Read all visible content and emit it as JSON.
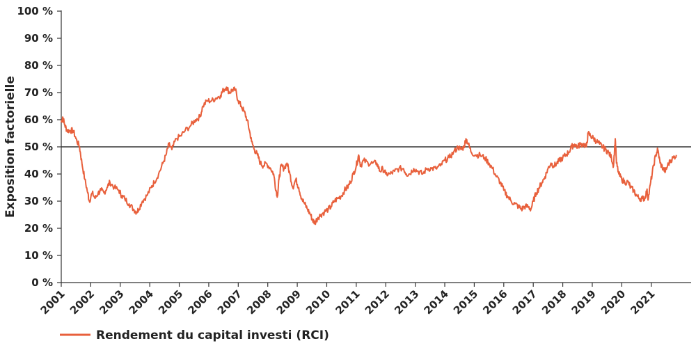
{
  "chart_data": {
    "type": "line",
    "ylabel": "Exposition factorielle",
    "xlabel": "",
    "title": "",
    "ylim": [
      0,
      100
    ],
    "xlim": [
      2001,
      2021.95
    ],
    "y_ticks": [
      "0 %",
      "10 %",
      "20 %",
      "30 %",
      "40 %",
      "50 %",
      "60 %",
      "70 %",
      "80 %",
      "90 %",
      "100 %"
    ],
    "x_ticks": [
      "2001",
      "2002",
      "2003",
      "2004",
      "2005",
      "2006",
      "2007",
      "2008",
      "2009",
      "2010",
      "2011",
      "2012",
      "2013",
      "2014",
      "2015",
      "2016",
      "2017",
      "2018",
      "2019",
      "2020",
      "2021"
    ],
    "reference_line": 50,
    "grid": false,
    "legend_position": "bottom-left",
    "series": [
      {
        "name": "Rendement du capital investi (RCI)",
        "color": "#e8603c",
        "points": [
          [
            2001.0,
            59
          ],
          [
            2001.05,
            61
          ],
          [
            2001.12,
            58
          ],
          [
            2001.2,
            56
          ],
          [
            2001.3,
            56
          ],
          [
            2001.4,
            56
          ],
          [
            2001.5,
            53
          ],
          [
            2001.62,
            50
          ],
          [
            2001.7,
            44
          ],
          [
            2001.8,
            38
          ],
          [
            2001.9,
            33
          ],
          [
            2001.95,
            30
          ],
          [
            2002.05,
            33
          ],
          [
            2002.15,
            31
          ],
          [
            2002.25,
            33
          ],
          [
            2002.35,
            34
          ],
          [
            2002.45,
            33
          ],
          [
            2002.55,
            35
          ],
          [
            2002.65,
            37
          ],
          [
            2002.8,
            35
          ],
          [
            2002.95,
            34
          ],
          [
            2003.05,
            32
          ],
          [
            2003.15,
            31
          ],
          [
            2003.3,
            29
          ],
          [
            2003.45,
            27
          ],
          [
            2003.55,
            26
          ],
          [
            2003.62,
            27
          ],
          [
            2003.75,
            30
          ],
          [
            2003.9,
            32
          ],
          [
            2004.05,
            35
          ],
          [
            2004.15,
            37
          ],
          [
            2004.3,
            40
          ],
          [
            2004.45,
            44
          ],
          [
            2004.55,
            47
          ],
          [
            2004.65,
            51
          ],
          [
            2004.75,
            49
          ],
          [
            2004.9,
            53
          ],
          [
            2005.05,
            54
          ],
          [
            2005.2,
            56
          ],
          [
            2005.4,
            58
          ],
          [
            2005.55,
            60
          ],
          [
            2005.7,
            61
          ],
          [
            2005.8,
            65
          ],
          [
            2005.95,
            67
          ],
          [
            2006.1,
            67
          ],
          [
            2006.25,
            68
          ],
          [
            2006.4,
            69
          ],
          [
            2006.5,
            71
          ],
          [
            2006.6,
            72
          ],
          [
            2006.7,
            70
          ],
          [
            2006.8,
            71
          ],
          [
            2006.9,
            71
          ],
          [
            2007.0,
            67
          ],
          [
            2007.1,
            65
          ],
          [
            2007.2,
            63
          ],
          [
            2007.3,
            60
          ],
          [
            2007.38,
            56
          ],
          [
            2007.45,
            52
          ],
          [
            2007.55,
            49
          ],
          [
            2007.65,
            47
          ],
          [
            2007.75,
            44
          ],
          [
            2007.85,
            43
          ],
          [
            2007.95,
            44
          ],
          [
            2008.1,
            42
          ],
          [
            2008.2,
            40
          ],
          [
            2008.28,
            34
          ],
          [
            2008.33,
            32
          ],
          [
            2008.38,
            38
          ],
          [
            2008.45,
            43
          ],
          [
            2008.55,
            42
          ],
          [
            2008.65,
            44
          ],
          [
            2008.75,
            40
          ],
          [
            2008.85,
            35
          ],
          [
            2008.95,
            38
          ],
          [
            2009.05,
            35
          ],
          [
            2009.15,
            31
          ],
          [
            2009.25,
            29
          ],
          [
            2009.35,
            27
          ],
          [
            2009.45,
            25
          ],
          [
            2009.52,
            23
          ],
          [
            2009.6,
            22
          ],
          [
            2009.7,
            24
          ],
          [
            2009.8,
            25
          ],
          [
            2009.92,
            26
          ],
          [
            2010.05,
            27
          ],
          [
            2010.15,
            28
          ],
          [
            2010.25,
            30
          ],
          [
            2010.38,
            31
          ],
          [
            2010.5,
            32
          ],
          [
            2010.6,
            34
          ],
          [
            2010.7,
            35
          ],
          [
            2010.8,
            37
          ],
          [
            2010.9,
            40
          ],
          [
            2011.0,
            43
          ],
          [
            2011.08,
            47
          ],
          [
            2011.15,
            43
          ],
          [
            2011.25,
            45
          ],
          [
            2011.4,
            44
          ],
          [
            2011.55,
            44
          ],
          [
            2011.7,
            44
          ],
          [
            2011.8,
            41
          ],
          [
            2011.9,
            42
          ],
          [
            2012.0,
            40
          ],
          [
            2012.15,
            40
          ],
          [
            2012.3,
            41
          ],
          [
            2012.45,
            42
          ],
          [
            2012.6,
            42
          ],
          [
            2012.7,
            40
          ],
          [
            2012.8,
            40
          ],
          [
            2012.95,
            42
          ],
          [
            2013.1,
            41
          ],
          [
            2013.25,
            40
          ],
          [
            2013.4,
            42
          ],
          [
            2013.55,
            42
          ],
          [
            2013.7,
            42
          ],
          [
            2013.85,
            43
          ],
          [
            2014.0,
            45
          ],
          [
            2014.15,
            46
          ],
          [
            2014.3,
            48
          ],
          [
            2014.45,
            50
          ],
          [
            2014.55,
            49
          ],
          [
            2014.65,
            50
          ],
          [
            2014.72,
            53
          ],
          [
            2014.8,
            51
          ],
          [
            2014.9,
            48
          ],
          [
            2015.05,
            47
          ],
          [
            2015.2,
            47
          ],
          [
            2015.35,
            46
          ],
          [
            2015.5,
            44
          ],
          [
            2015.62,
            42
          ],
          [
            2015.75,
            39
          ],
          [
            2015.88,
            37
          ],
          [
            2016.0,
            34
          ],
          [
            2016.12,
            32
          ],
          [
            2016.25,
            30
          ],
          [
            2016.38,
            29
          ],
          [
            2016.5,
            28
          ],
          [
            2016.6,
            27
          ],
          [
            2016.7,
            28
          ],
          [
            2016.82,
            28
          ],
          [
            2016.92,
            27
          ],
          [
            2017.0,
            30
          ],
          [
            2017.1,
            33
          ],
          [
            2017.2,
            35
          ],
          [
            2017.3,
            37
          ],
          [
            2017.4,
            39
          ],
          [
            2017.5,
            42
          ],
          [
            2017.6,
            44
          ],
          [
            2017.7,
            43
          ],
          [
            2017.8,
            44
          ],
          [
            2017.9,
            45
          ],
          [
            2018.0,
            46
          ],
          [
            2018.1,
            47
          ],
          [
            2018.2,
            48
          ],
          [
            2018.3,
            50
          ],
          [
            2018.4,
            51
          ],
          [
            2018.5,
            50
          ],
          [
            2018.6,
            51
          ],
          [
            2018.7,
            51
          ],
          [
            2018.8,
            50
          ],
          [
            2018.86,
            55
          ],
          [
            2018.95,
            54
          ],
          [
            2019.05,
            53
          ],
          [
            2019.15,
            52
          ],
          [
            2019.25,
            51
          ],
          [
            2019.35,
            50
          ],
          [
            2019.45,
            49
          ],
          [
            2019.55,
            48
          ],
          [
            2019.65,
            46
          ],
          [
            2019.72,
            43
          ],
          [
            2019.78,
            53
          ],
          [
            2019.82,
            44
          ],
          [
            2019.9,
            40
          ],
          [
            2020.0,
            38
          ],
          [
            2020.1,
            37
          ],
          [
            2020.22,
            37
          ],
          [
            2020.3,
            35
          ],
          [
            2020.4,
            34
          ],
          [
            2020.5,
            32
          ],
          [
            2020.6,
            31
          ],
          [
            2020.7,
            31
          ],
          [
            2020.78,
            31
          ],
          [
            2020.85,
            34
          ],
          [
            2020.9,
            31
          ],
          [
            2020.98,
            37
          ],
          [
            2021.08,
            43
          ],
          [
            2021.15,
            47
          ],
          [
            2021.22,
            49
          ],
          [
            2021.3,
            44
          ],
          [
            2021.4,
            42
          ],
          [
            2021.48,
            41
          ],
          [
            2021.55,
            43
          ],
          [
            2021.65,
            45
          ],
          [
            2021.75,
            46
          ],
          [
            2021.85,
            47
          ]
        ]
      }
    ]
  }
}
